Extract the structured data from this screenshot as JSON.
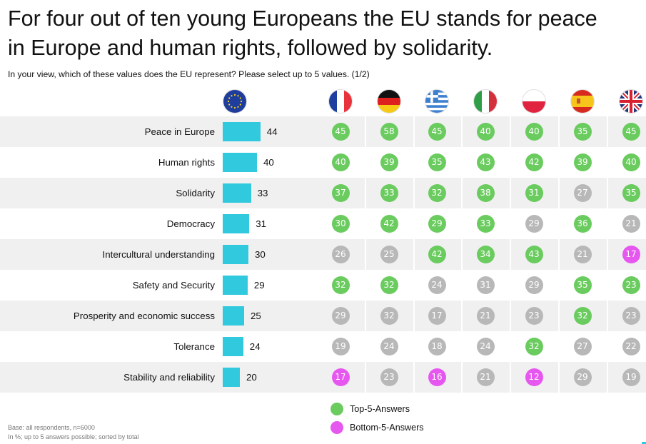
{
  "header": {
    "title_line1": "For four out of ten young Europeans the EU stands for peace",
    "title_line2": "in Europe and human rights, followed by solidarity.",
    "subtitle": "In your view, which of these values does the EU represent? Please select up to 5 values. (1/2)"
  },
  "columns": [
    {
      "key": "EU",
      "icon": "eu-flag-icon"
    },
    {
      "key": "FR",
      "icon": "france-flag-icon"
    },
    {
      "key": "DE",
      "icon": "germany-flag-icon"
    },
    {
      "key": "GR",
      "icon": "greece-flag-icon"
    },
    {
      "key": "IT",
      "icon": "italy-flag-icon"
    },
    {
      "key": "PL",
      "icon": "poland-flag-icon"
    },
    {
      "key": "ES",
      "icon": "spain-flag-icon"
    },
    {
      "key": "UK",
      "icon": "uk-flag-icon"
    }
  ],
  "colors": {
    "bar": "#31c9dd",
    "top5": "#6acb5e",
    "bottom5": "#e657f0",
    "neutral": "#b8b8b8",
    "row_shade": "#f0f0f0"
  },
  "chart_data": {
    "type": "table",
    "title": "For four out of ten young Europeans the EU stands for peace in Europe and human rights, followed by solidarity.",
    "subtitle": "In your view, which of these values does the EU represent? Please select up to 5 values. (1/2)",
    "unit": "%",
    "categories": [
      "Peace in Europe",
      "Human rights",
      "Solidarity",
      "Democracy",
      "Intercultural understanding",
      "Safety and Security",
      "Prosperity and economic success",
      "Tolerance",
      "Stability and reliability"
    ],
    "total": [
      44,
      40,
      33,
      31,
      30,
      29,
      25,
      24,
      20
    ],
    "countries": [
      "France",
      "Germany",
      "Greece",
      "Italy",
      "Poland",
      "Spain",
      "United Kingdom"
    ],
    "series": [
      {
        "name": "France",
        "values": [
          45,
          40,
          37,
          30,
          26,
          32,
          29,
          19,
          17
        ],
        "status": [
          "top",
          "top",
          "top",
          "top",
          "none",
          "top",
          "none",
          "none",
          "bottom"
        ]
      },
      {
        "name": "Germany",
        "values": [
          58,
          39,
          33,
          42,
          25,
          32,
          32,
          24,
          23
        ],
        "status": [
          "top",
          "top",
          "top",
          "top",
          "none",
          "top",
          "none",
          "none",
          "none"
        ]
      },
      {
        "name": "Greece",
        "values": [
          45,
          35,
          32,
          29,
          42,
          24,
          17,
          18,
          16
        ],
        "status": [
          "top",
          "top",
          "top",
          "top",
          "top",
          "none",
          "none",
          "none",
          "bottom"
        ]
      },
      {
        "name": "Italy",
        "values": [
          40,
          43,
          38,
          33,
          34,
          31,
          21,
          24,
          21
        ],
        "status": [
          "top",
          "top",
          "top",
          "top",
          "top",
          "none",
          "none",
          "none",
          "none"
        ]
      },
      {
        "name": "Poland",
        "values": [
          40,
          42,
          31,
          29,
          43,
          29,
          23,
          32,
          12
        ],
        "status": [
          "top",
          "top",
          "top",
          "none",
          "top",
          "none",
          "none",
          "top",
          "bottom"
        ]
      },
      {
        "name": "Spain",
        "values": [
          35,
          39,
          27,
          36,
          21,
          35,
          32,
          27,
          29
        ],
        "status": [
          "top",
          "top",
          "none",
          "top",
          "none",
          "top",
          "top",
          "none",
          "none"
        ]
      },
      {
        "name": "United Kingdom",
        "values": [
          45,
          40,
          35,
          21,
          17,
          23,
          23,
          22,
          19
        ],
        "status": [
          "top",
          "top",
          "top",
          "none",
          "bottom",
          "top",
          "none",
          "none",
          "none"
        ]
      }
    ],
    "legend": [
      {
        "label": "Top-5-Answers",
        "status": "top"
      },
      {
        "label": "Bottom-5-Answers",
        "status": "bottom"
      }
    ],
    "legend_position": "bottom-center"
  },
  "footer": {
    "base": "Base: all respondents, n=6000",
    "note": "In %; up to 5 answers possible; sorted by total"
  }
}
